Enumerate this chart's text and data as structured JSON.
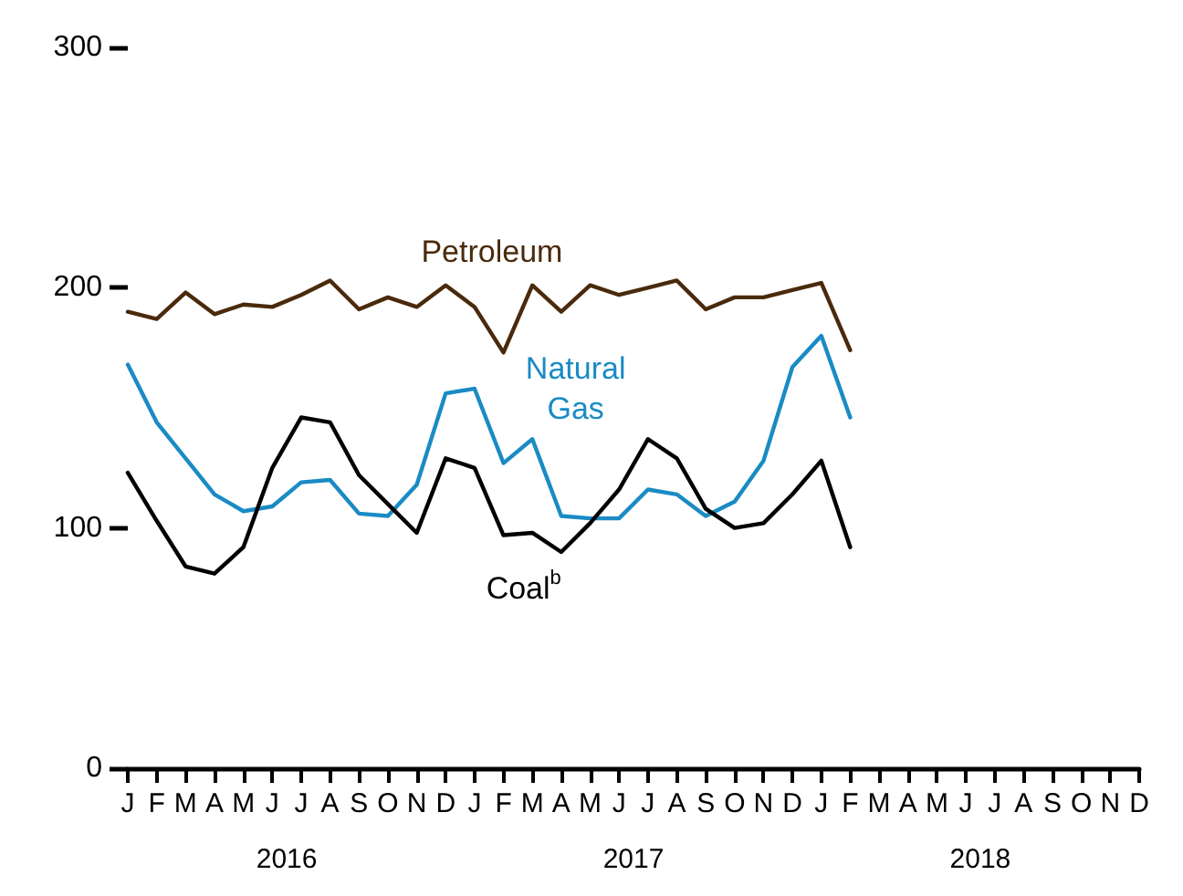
{
  "chart_data": {
    "type": "line",
    "categories": [
      "J",
      "F",
      "M",
      "A",
      "M",
      "J",
      "J",
      "A",
      "S",
      "O",
      "N",
      "D",
      "J",
      "F",
      "M",
      "A",
      "M",
      "J",
      "J",
      "A",
      "S",
      "O",
      "N",
      "D",
      "J",
      "F",
      "M",
      "A",
      "M",
      "J",
      "J",
      "A",
      "S",
      "O",
      "N",
      "D"
    ],
    "series": [
      {
        "name": "Petroleum",
        "color": "#4a2a0c",
        "values": [
          190,
          187,
          198,
          189,
          193,
          192,
          197,
          203,
          191,
          196,
          192,
          201,
          192,
          173,
          201,
          190,
          201,
          197,
          200,
          203,
          191,
          196,
          196,
          199,
          202,
          174,
          null,
          null,
          null,
          null,
          null,
          null,
          null,
          null,
          null,
          null
        ]
      },
      {
        "name": "Natural\nGas",
        "color": "#1a8bc4",
        "values": [
          168,
          144,
          129,
          114,
          107,
          109,
          119,
          120,
          106,
          105,
          118,
          156,
          158,
          127,
          137,
          105,
          104,
          104,
          116,
          114,
          105,
          111,
          128,
          167,
          180,
          146,
          null,
          null,
          null,
          null,
          null,
          null,
          null,
          null,
          null,
          null
        ]
      },
      {
        "name": "Coal$^{b}$",
        "color": "#000000",
        "values": [
          123,
          103,
          84,
          81,
          92,
          125,
          146,
          144,
          122,
          110,
          98,
          129,
          125,
          97,
          98,
          90,
          102,
          116,
          137,
          129,
          108,
          100,
          102,
          114,
          128,
          92,
          null,
          null,
          null,
          null,
          null,
          null,
          null,
          null,
          null,
          null
        ]
      }
    ],
    "ylim": [
      0,
      300
    ],
    "yticks": [
      0,
      100,
      200,
      300
    ],
    "annotations": [
      "2016",
      "2017",
      "2018"
    ],
    "grid": false,
    "marker": "none",
    "line_style": "solid"
  }
}
